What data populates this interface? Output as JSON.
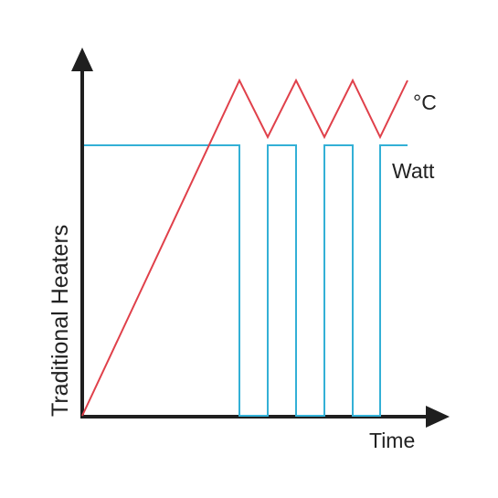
{
  "labels": {
    "y_axis": "Traditional Heaters",
    "x_axis": "Time",
    "temperature_series": "°C",
    "power_series": "Watt"
  },
  "colors": {
    "axis": "#1f1f1f",
    "temperature_line": "#e0404a",
    "power_line": "#33b0d6"
  }
}
